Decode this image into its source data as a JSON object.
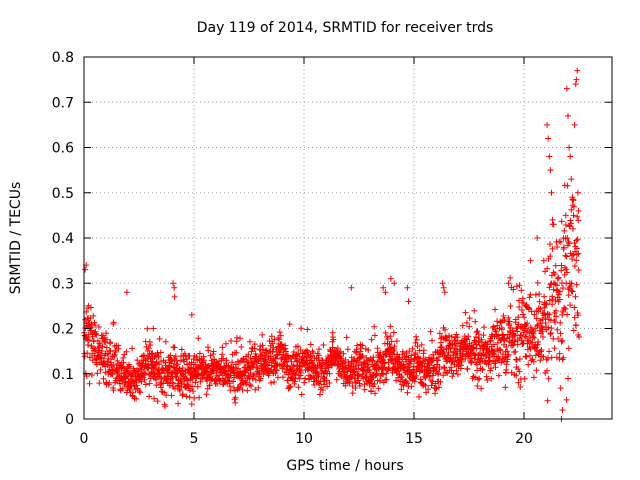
{
  "chart_data": {
    "type": "scatter",
    "title": "Day 119 of 2014, SRMTID for receiver trds",
    "xlabel": "GPS time / hours",
    "ylabel": "SRMTID / TECUs",
    "xlim": [
      0,
      24
    ],
    "ylim": [
      0,
      0.8
    ],
    "xticks": [
      0,
      5,
      10,
      15,
      20
    ],
    "yticks": [
      0,
      0.1,
      0.2,
      0.3,
      0.4,
      0.5,
      0.6,
      0.7,
      0.8
    ],
    "xtick_labels": [
      "0",
      "5",
      "10",
      "15",
      "20"
    ],
    "ytick_labels": [
      "0",
      "0.1",
      "0.2",
      "0.3",
      "0.4",
      "0.5",
      "0.6",
      "0.7",
      "0.8"
    ],
    "grid": true,
    "marker": "+",
    "color": "#ff0000",
    "series": [
      {
        "name": "SRMTID",
        "x_range": [
          0.0,
          22.5
        ],
        "trend": {
          "x": [
            0.0,
            0.5,
            1.0,
            1.5,
            2.0,
            3.0,
            4.0,
            5.0,
            6.0,
            7.0,
            8.0,
            9.0,
            10.0,
            11.0,
            12.0,
            13.0,
            14.0,
            15.0,
            16.0,
            17.0,
            18.0,
            19.0,
            20.0,
            20.5,
            21.0,
            21.5,
            22.0,
            22.5
          ],
          "y": [
            0.16,
            0.14,
            0.12,
            0.1,
            0.09,
            0.09,
            0.09,
            0.09,
            0.085,
            0.1,
            0.11,
            0.11,
            0.11,
            0.1,
            0.1,
            0.11,
            0.11,
            0.1,
            0.11,
            0.13,
            0.14,
            0.15,
            0.17,
            0.19,
            0.22,
            0.26,
            0.32,
            0.33
          ],
          "spread": [
            0.05,
            0.05,
            0.04,
            0.035,
            0.03,
            0.03,
            0.035,
            0.03,
            0.025,
            0.035,
            0.035,
            0.035,
            0.03,
            0.03,
            0.03,
            0.035,
            0.035,
            0.035,
            0.035,
            0.035,
            0.04,
            0.05,
            0.07,
            0.08,
            0.1,
            0.12,
            0.15,
            0.17
          ]
        },
        "highlights": [
          {
            "x": 0.05,
            "y": 0.33
          },
          {
            "x": 0.1,
            "y": 0.34
          },
          {
            "x": 0.2,
            "y": 0.25
          },
          {
            "x": 1.95,
            "y": 0.28
          },
          {
            "x": 3.15,
            "y": 0.2
          },
          {
            "x": 4.05,
            "y": 0.3
          },
          {
            "x": 4.1,
            "y": 0.29
          },
          {
            "x": 4.12,
            "y": 0.27
          },
          {
            "x": 4.9,
            "y": 0.23
          },
          {
            "x": 12.15,
            "y": 0.29
          },
          {
            "x": 13.6,
            "y": 0.29
          },
          {
            "x": 13.7,
            "y": 0.28
          },
          {
            "x": 13.95,
            "y": 0.31
          },
          {
            "x": 14.1,
            "y": 0.3
          },
          {
            "x": 14.7,
            "y": 0.29
          },
          {
            "x": 14.75,
            "y": 0.26
          },
          {
            "x": 16.3,
            "y": 0.3
          },
          {
            "x": 16.35,
            "y": 0.29
          },
          {
            "x": 16.4,
            "y": 0.28
          },
          {
            "x": 19.3,
            "y": 0.3
          },
          {
            "x": 20.3,
            "y": 0.35
          },
          {
            "x": 20.6,
            "y": 0.4
          },
          {
            "x": 20.9,
            "y": 0.35
          },
          {
            "x": 21.05,
            "y": 0.65
          },
          {
            "x": 21.1,
            "y": 0.62
          },
          {
            "x": 21.15,
            "y": 0.58
          },
          {
            "x": 21.2,
            "y": 0.55
          },
          {
            "x": 21.25,
            "y": 0.5
          },
          {
            "x": 21.3,
            "y": 0.44
          },
          {
            "x": 21.35,
            "y": 0.43
          },
          {
            "x": 21.5,
            "y": 0.38
          },
          {
            "x": 21.8,
            "y": 0.4
          },
          {
            "x": 21.9,
            "y": 0.45
          },
          {
            "x": 21.95,
            "y": 0.73
          },
          {
            "x": 22.0,
            "y": 0.67
          },
          {
            "x": 22.05,
            "y": 0.6
          },
          {
            "x": 22.1,
            "y": 0.58
          },
          {
            "x": 22.15,
            "y": 0.53
          },
          {
            "x": 22.2,
            "y": 0.49
          },
          {
            "x": 22.25,
            "y": 0.45
          },
          {
            "x": 22.3,
            "y": 0.65
          },
          {
            "x": 22.35,
            "y": 0.74
          },
          {
            "x": 22.38,
            "y": 0.75
          },
          {
            "x": 22.42,
            "y": 0.77
          },
          {
            "x": 22.45,
            "y": 0.5
          },
          {
            "x": 22.48,
            "y": 0.46
          },
          {
            "x": 21.7,
            "y": 0.0
          },
          {
            "x": 21.75,
            "y": 0.02
          }
        ]
      }
    ]
  }
}
